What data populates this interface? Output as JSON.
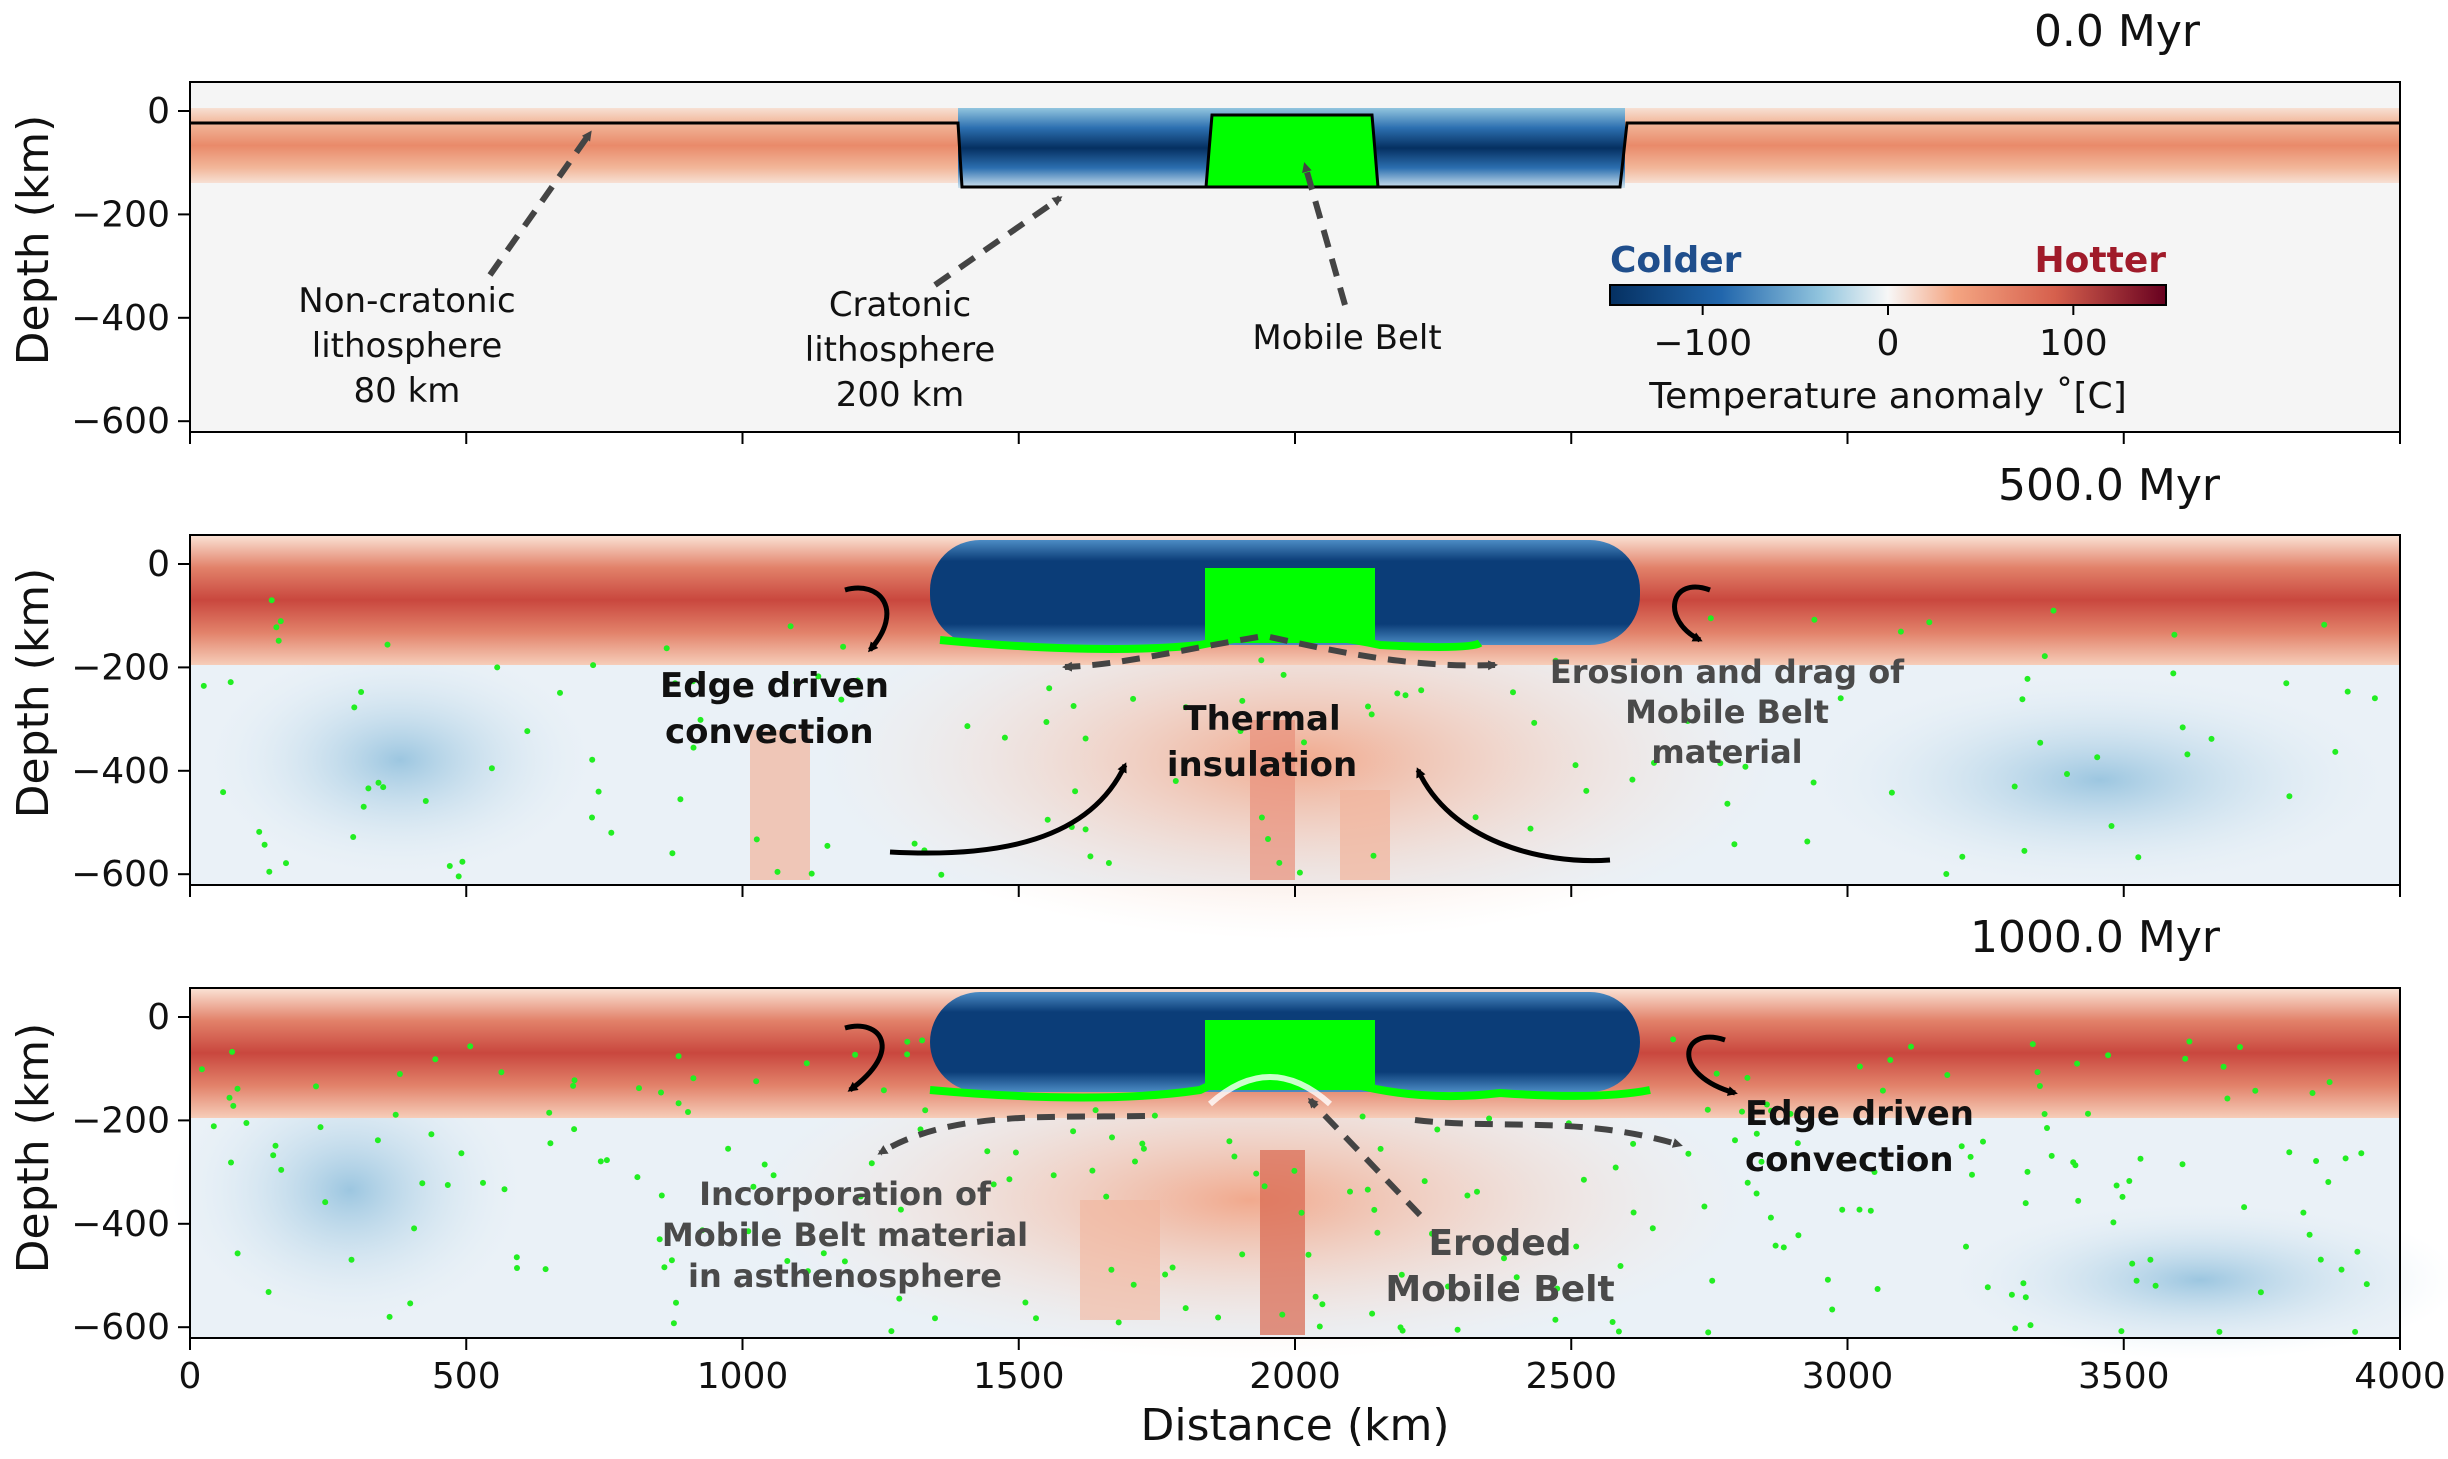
{
  "chart_data": {
    "type": "heatmap",
    "xlabel": "Distance (km)",
    "ylabel": "Depth (km)",
    "xlim": [
      0,
      4000
    ],
    "ylim": [
      -650,
      0
    ],
    "x_ticks": [
      0,
      500,
      1000,
      1500,
      2000,
      2500,
      3000,
      3500,
      4000
    ],
    "y_ticks": [
      0,
      -200,
      -400,
      -600
    ],
    "colorbar": {
      "label": "Temperature anomaly ˚C]",
      "label_text": "Temperature anomaly ˚[C]",
      "ticks": [
        -100,
        0,
        100
      ],
      "range": [
        -150,
        150
      ],
      "cold_label": "Colder",
      "hot_label": "Hotter",
      "cold_color": "#1f4e8c",
      "hot_color": "#a01b2a"
    },
    "panels": [
      {
        "time": "0.0 Myr",
        "annotations": [
          {
            "lines": [
              "Non-cratonic",
              "lithosphere",
              "80 km"
            ],
            "style": "normal"
          },
          {
            "lines": [
              "Cratonic",
              "lithosphere",
              "200 km"
            ],
            "style": "normal"
          },
          {
            "lines": [
              "Mobile Belt"
            ],
            "style": "normal"
          }
        ]
      },
      {
        "time": "500.0 Myr",
        "annotations": [
          {
            "lines": [
              "Edge driven",
              "convection"
            ],
            "style": "bold"
          },
          {
            "lines": [
              "Thermal",
              "insulation"
            ],
            "style": "bold"
          },
          {
            "lines": [
              "Erosion and drag of",
              "Mobile Belt",
              "material"
            ],
            "style": "grey"
          }
        ]
      },
      {
        "time": "1000.0 Myr",
        "annotations": [
          {
            "lines": [
              "Incorporation of",
              "Mobile Belt material",
              "in asthenosphere"
            ],
            "style": "grey"
          },
          {
            "lines": [
              "Eroded",
              "Mobile Belt"
            ],
            "style": "grey"
          },
          {
            "lines": [
              "Edge driven",
              "convection"
            ],
            "style": "bold"
          }
        ]
      }
    ]
  }
}
